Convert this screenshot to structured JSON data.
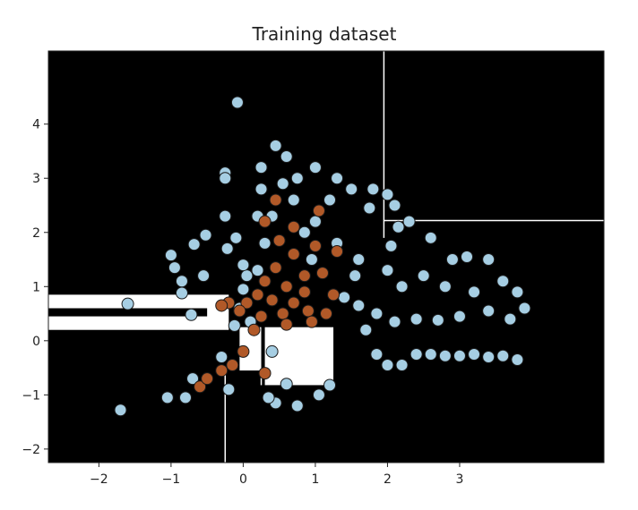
{
  "chart_data": {
    "type": "scatter",
    "title": "Training dataset",
    "xlabel": "",
    "ylabel": "",
    "xlim": [
      -2.7,
      5.0
    ],
    "ylim": [
      -2.25,
      5.35
    ],
    "xticks": [
      -2,
      -1,
      0,
      1,
      2,
      3
    ],
    "yticks": [
      -2,
      -1,
      0,
      1,
      2,
      3,
      4
    ],
    "xtick_labels": [
      "−2",
      "−1",
      "0",
      "1",
      "2",
      "3"
    ],
    "ytick_labels": [
      "−2",
      "−1",
      "0",
      "1",
      "2",
      "3",
      "4"
    ],
    "grid": false,
    "legend": "none",
    "background_color": "#000000",
    "decision_region_color": "#ffffff",
    "decision_regions": [
      {
        "x": [
          -2.7,
          -0.2
        ],
        "y": [
          0.2,
          0.85
        ]
      },
      {
        "x": [
          0.3,
          1.25
        ],
        "y": [
          -0.82,
          0.25
        ]
      },
      {
        "x": [
          -0.05,
          0.25
        ],
        "y": [
          -0.55,
          0.25
        ]
      }
    ],
    "decision_region_inner_black": [
      {
        "x": [
          -2.7,
          -0.5
        ],
        "y": [
          0.45,
          0.6
        ]
      }
    ],
    "boundary_lines": [
      {
        "x1": 1.95,
        "y1": 5.35,
        "x2": 1.95,
        "y2": 1.9
      },
      {
        "x1": 1.95,
        "y1": 2.22,
        "x2": 5.0,
        "y2": 2.22
      },
      {
        "x1": -0.25,
        "y1": -0.6,
        "x2": -0.25,
        "y2": -2.25
      },
      {
        "x1": 0.25,
        "y1": -0.55,
        "x2": 0.25,
        "y2": -0.82
      }
    ],
    "series": [
      {
        "color": "#a6cee3",
        "points": [
          [
            -0.08,
            4.4
          ],
          [
            -1.6,
            0.68
          ],
          [
            -1.7,
            -1.28
          ],
          [
            -1.05,
            -1.05
          ],
          [
            -0.8,
            -1.05
          ],
          [
            -1.0,
            1.58
          ],
          [
            -0.95,
            1.35
          ],
          [
            -0.85,
            1.1
          ],
          [
            -0.85,
            0.88
          ],
          [
            -0.72,
            0.48
          ],
          [
            -0.68,
            1.78
          ],
          [
            -0.52,
            1.95
          ],
          [
            -0.55,
            1.2
          ],
          [
            -0.7,
            -0.7
          ],
          [
            -0.2,
            -0.9
          ],
          [
            -0.3,
            -0.3
          ],
          [
            -0.12,
            0.28
          ],
          [
            0.0,
            0.95
          ],
          [
            -0.25,
            2.3
          ],
          [
            -0.22,
            1.7
          ],
          [
            -0.25,
            3.1
          ],
          [
            -0.25,
            3.0
          ],
          [
            0.25,
            3.2
          ],
          [
            0.25,
            2.8
          ],
          [
            0.45,
            3.6
          ],
          [
            0.6,
            3.4
          ],
          [
            0.75,
            3.0
          ],
          [
            1.0,
            3.2
          ],
          [
            1.3,
            3.0
          ],
          [
            1.5,
            2.8
          ],
          [
            1.8,
            2.8
          ],
          [
            2.0,
            2.7
          ],
          [
            2.1,
            2.5
          ],
          [
            2.3,
            2.2
          ],
          [
            2.6,
            1.9
          ],
          [
            2.9,
            1.5
          ],
          [
            3.1,
            1.55
          ],
          [
            3.4,
            1.5
          ],
          [
            3.6,
            1.1
          ],
          [
            3.8,
            0.9
          ],
          [
            3.9,
            0.6
          ],
          [
            3.7,
            0.4
          ],
          [
            3.4,
            0.55
          ],
          [
            3.0,
            0.45
          ],
          [
            2.7,
            0.38
          ],
          [
            2.4,
            0.4
          ],
          [
            2.1,
            0.35
          ],
          [
            1.85,
            0.5
          ],
          [
            1.6,
            0.65
          ],
          [
            1.4,
            0.8
          ],
          [
            2.2,
            1.0
          ],
          [
            2.5,
            1.2
          ],
          [
            2.8,
            1.0
          ],
          [
            3.2,
            0.9
          ],
          [
            2.0,
            1.3
          ],
          [
            1.6,
            1.5
          ],
          [
            1.3,
            1.8
          ],
          [
            1.0,
            2.2
          ],
          [
            0.7,
            2.6
          ],
          [
            0.4,
            2.3
          ],
          [
            0.3,
            1.8
          ],
          [
            0.2,
            1.3
          ],
          [
            0.05,
            1.2
          ],
          [
            -0.05,
            0.6
          ],
          [
            0.1,
            0.35
          ],
          [
            0.4,
            -0.2
          ],
          [
            0.45,
            -1.15
          ],
          [
            0.6,
            -0.8
          ],
          [
            0.75,
            -1.2
          ],
          [
            1.05,
            -1.0
          ],
          [
            1.2,
            -0.82
          ],
          [
            0.35,
            -1.05
          ],
          [
            1.85,
            -0.25
          ],
          [
            2.0,
            -0.45
          ],
          [
            2.2,
            -0.45
          ],
          [
            2.4,
            -0.25
          ],
          [
            2.6,
            -0.25
          ],
          [
            2.8,
            -0.28
          ],
          [
            3.0,
            -0.28
          ],
          [
            3.2,
            -0.25
          ],
          [
            3.4,
            -0.3
          ],
          [
            3.6,
            -0.28
          ],
          [
            3.8,
            -0.35
          ],
          [
            1.7,
            0.2
          ],
          [
            2.05,
            1.75
          ],
          [
            2.15,
            2.1
          ],
          [
            1.75,
            2.45
          ],
          [
            1.2,
            2.6
          ],
          [
            0.85,
            2.0
          ],
          [
            1.55,
            1.2
          ],
          [
            0.55,
            2.9
          ],
          [
            0.95,
            1.5
          ],
          [
            0.2,
            2.3
          ],
          [
            -0.1,
            1.9
          ],
          [
            0.0,
            1.4
          ]
        ]
      },
      {
        "color": "#b15928",
        "points": [
          [
            0.45,
            2.6
          ],
          [
            0.3,
            2.2
          ],
          [
            0.5,
            1.85
          ],
          [
            0.7,
            1.6
          ],
          [
            0.45,
            1.35
          ],
          [
            0.3,
            1.1
          ],
          [
            0.6,
            1.0
          ],
          [
            0.85,
            1.2
          ],
          [
            0.2,
            0.85
          ],
          [
            0.05,
            0.7
          ],
          [
            0.4,
            0.75
          ],
          [
            0.7,
            0.7
          ],
          [
            0.9,
            0.55
          ],
          [
            1.15,
            0.5
          ],
          [
            0.55,
            0.5
          ],
          [
            0.25,
            0.45
          ],
          [
            -0.2,
            0.7
          ],
          [
            -0.3,
            0.65
          ],
          [
            -0.05,
            0.55
          ],
          [
            0.15,
            0.2
          ],
          [
            0.85,
            0.9
          ],
          [
            1.1,
            1.25
          ],
          [
            1.3,
            1.65
          ],
          [
            1.0,
            1.75
          ],
          [
            0.7,
            2.1
          ],
          [
            1.05,
            2.4
          ],
          [
            0.95,
            0.35
          ],
          [
            0.6,
            0.3
          ],
          [
            1.25,
            0.85
          ],
          [
            0.0,
            -0.2
          ],
          [
            -0.15,
            -0.45
          ],
          [
            -0.3,
            -0.55
          ],
          [
            -0.6,
            -0.85
          ],
          [
            -0.5,
            -0.7
          ],
          [
            0.3,
            -0.6
          ]
        ]
      }
    ]
  }
}
